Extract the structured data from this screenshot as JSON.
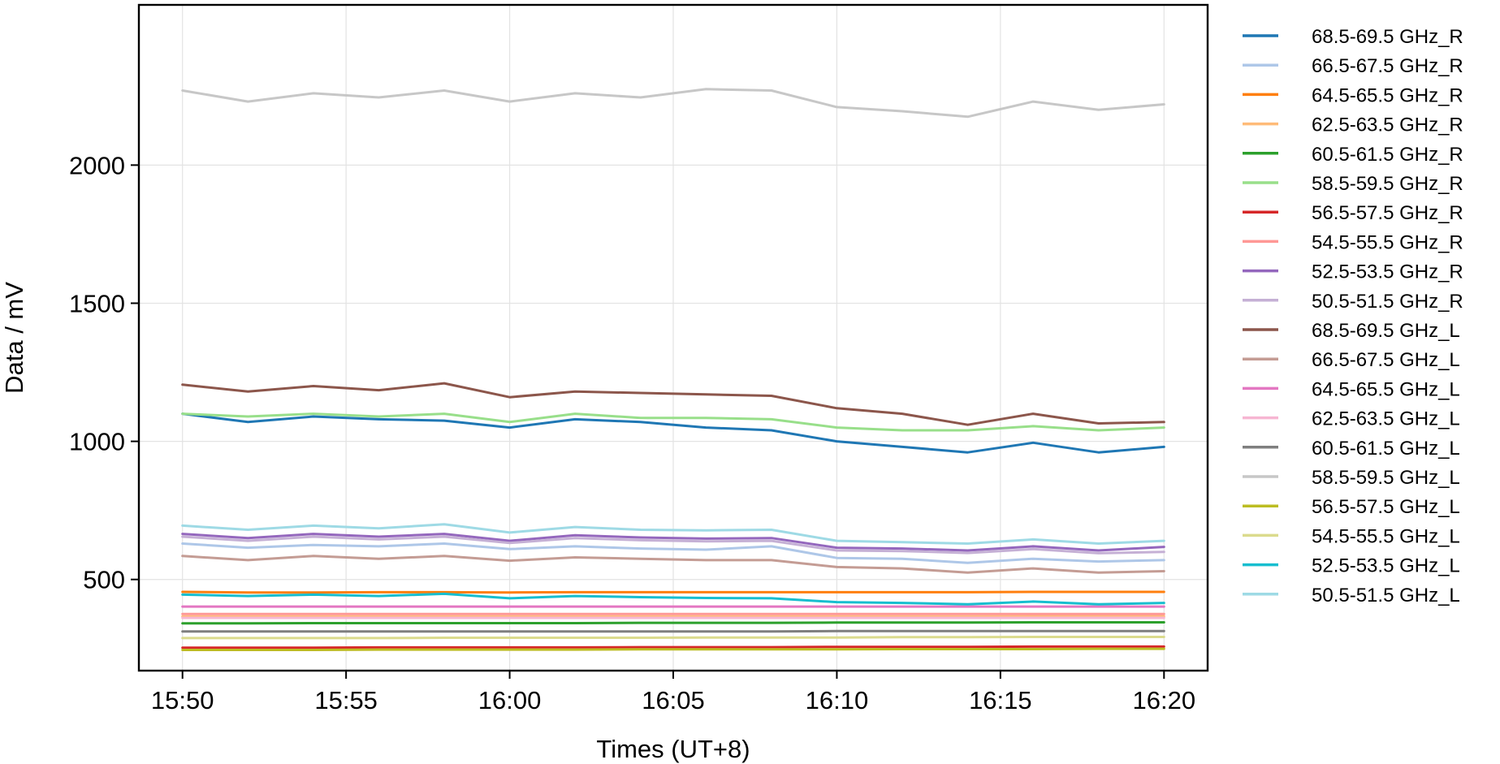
{
  "chart_data": {
    "type": "line",
    "title": "",
    "xlabel": "Times (UT+8)",
    "ylabel": "Data / mV",
    "xlim": [
      "15:48:40",
      "16:21:20"
    ],
    "ylim": [
      170,
      2580
    ],
    "x_ticks": [
      "15:50",
      "15:55",
      "16:00",
      "16:05",
      "16:10",
      "16:15",
      "16:20"
    ],
    "y_ticks": [
      500,
      1000,
      1500,
      2000
    ],
    "grid": true,
    "legend_position": "outside-right",
    "x": [
      "15:50",
      "15:52",
      "15:54",
      "15:56",
      "15:58",
      "16:00",
      "16:02",
      "16:04",
      "16:06",
      "16:08",
      "16:10",
      "16:12",
      "16:14",
      "16:16",
      "16:18",
      "16:20"
    ],
    "series": [
      {
        "name": "68.5-69.5 GHz_R",
        "color": "#1f77b4",
        "width": 3,
        "values": [
          1100,
          1070,
          1090,
          1080,
          1075,
          1050,
          1080,
          1070,
          1050,
          1040,
          1000,
          980,
          960,
          995,
          960,
          980
        ]
      },
      {
        "name": "66.5-67.5 GHz_R",
        "color": "#aec7e8",
        "width": 3,
        "values": [
          630,
          615,
          625,
          620,
          630,
          610,
          620,
          612,
          608,
          620,
          578,
          575,
          560,
          575,
          565,
          570
        ]
      },
      {
        "name": "64.5-65.5 GHz_R",
        "color": "#ff7f0e",
        "width": 3,
        "values": [
          455,
          453,
          453,
          454,
          454,
          453,
          454,
          454,
          454,
          454,
          454,
          454,
          454,
          455,
          455,
          455
        ]
      },
      {
        "name": "62.5-63.5 GHz_R",
        "color": "#ffbb78",
        "width": 3,
        "values": [
          366,
          366,
          366,
          366,
          366,
          366,
          366,
          366,
          366,
          366,
          366,
          366,
          366,
          367,
          367,
          367
        ]
      },
      {
        "name": "60.5-61.5 GHz_R",
        "color": "#2ca02c",
        "width": 3,
        "values": [
          341,
          341,
          342,
          342,
          342,
          342,
          342,
          343,
          343,
          343,
          344,
          344,
          344,
          345,
          345,
          345
        ]
      },
      {
        "name": "58.5-59.5 GHz_R",
        "color": "#98df8a",
        "width": 3,
        "values": [
          1100,
          1090,
          1100,
          1090,
          1100,
          1070,
          1100,
          1085,
          1085,
          1080,
          1050,
          1040,
          1040,
          1055,
          1040,
          1050
        ]
      },
      {
        "name": "56.5-57.5 GHz_R",
        "color": "#d62728",
        "width": 3,
        "values": [
          253,
          253,
          253,
          254,
          254,
          254,
          254,
          255,
          255,
          255,
          256,
          256,
          256,
          257,
          257,
          257
        ]
      },
      {
        "name": "54.5-55.5 GHz_R",
        "color": "#ff9896",
        "width": 3,
        "values": [
          375,
          375,
          375,
          375,
          375,
          375,
          375,
          375,
          375,
          375,
          375,
          375,
          375,
          375,
          375,
          375
        ]
      },
      {
        "name": "52.5-53.5 GHz_R",
        "color": "#9467bd",
        "width": 3,
        "values": [
          665,
          650,
          665,
          655,
          665,
          640,
          660,
          652,
          648,
          650,
          615,
          612,
          605,
          620,
          605,
          618
        ]
      },
      {
        "name": "50.5-51.5 GHz_R",
        "color": "#c5b0d5",
        "width": 3,
        "values": [
          655,
          640,
          655,
          645,
          655,
          632,
          650,
          642,
          638,
          640,
          605,
          603,
          596,
          610,
          595,
          600
        ]
      },
      {
        "name": "68.5-69.5 GHz_L",
        "color": "#8c564b",
        "width": 3,
        "values": [
          1205,
          1180,
          1200,
          1185,
          1210,
          1160,
          1180,
          1175,
          1170,
          1165,
          1120,
          1100,
          1060,
          1100,
          1065,
          1070
        ]
      },
      {
        "name": "66.5-67.5 GHz_L",
        "color": "#c49c94",
        "width": 3,
        "values": [
          585,
          570,
          585,
          575,
          585,
          568,
          580,
          575,
          570,
          570,
          545,
          540,
          525,
          540,
          525,
          530
        ]
      },
      {
        "name": "64.5-65.5 GHz_L",
        "color": "#e377c2",
        "width": 3,
        "values": [
          402,
          402,
          402,
          402,
          402,
          402,
          402,
          402,
          402,
          402,
          402,
          402,
          402,
          402,
          402,
          402
        ]
      },
      {
        "name": "62.5-63.5 GHz_L",
        "color": "#f7b6d2",
        "width": 3,
        "values": [
          361,
          361,
          361,
          361,
          361,
          361,
          361,
          361,
          361,
          361,
          361,
          361,
          361,
          361,
          361,
          361
        ]
      },
      {
        "name": "60.5-61.5 GHz_L",
        "color": "#7f7f7f",
        "width": 3,
        "values": [
          312,
          312,
          312,
          312,
          312,
          312,
          312,
          312,
          312,
          312,
          313,
          313,
          313,
          313,
          313,
          313
        ]
      },
      {
        "name": "58.5-59.5 GHz_L",
        "color": "#c7c7c7",
        "width": 3,
        "values": [
          2270,
          2230,
          2260,
          2245,
          2270,
          2230,
          2260,
          2245,
          2275,
          2270,
          2210,
          2195,
          2175,
          2230,
          2200,
          2220
        ]
      },
      {
        "name": "56.5-57.5 GHz_L",
        "color": "#bcbd22",
        "width": 3,
        "values": [
          245,
          245,
          245,
          246,
          246,
          246,
          246,
          247,
          247,
          247,
          247,
          248,
          248,
          248,
          249,
          249
        ]
      },
      {
        "name": "54.5-55.5 GHz_L",
        "color": "#dbdb8d",
        "width": 3,
        "values": [
          288,
          288,
          288,
          288,
          289,
          289,
          289,
          289,
          290,
          290,
          290,
          291,
          291,
          292,
          292,
          292
        ]
      },
      {
        "name": "52.5-53.5 GHz_L",
        "color": "#17becf",
        "width": 3,
        "values": [
          445,
          440,
          445,
          440,
          448,
          432,
          440,
          436,
          433,
          432,
          418,
          415,
          410,
          420,
          410,
          415
        ]
      },
      {
        "name": "50.5-51.5 GHz_L",
        "color": "#9edae5",
        "width": 3,
        "values": [
          695,
          680,
          695,
          685,
          700,
          670,
          690,
          680,
          678,
          680,
          640,
          635,
          630,
          645,
          630,
          640
        ]
      }
    ]
  }
}
